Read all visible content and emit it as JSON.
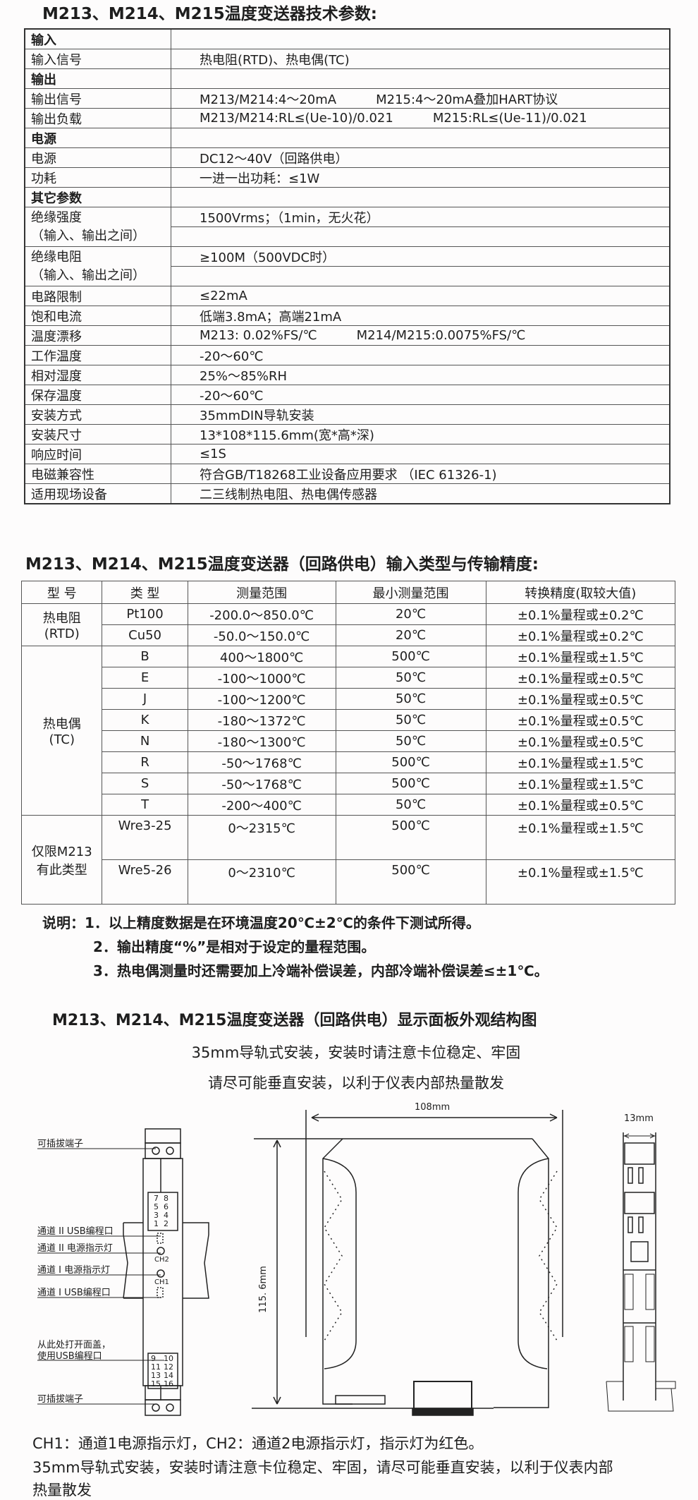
{
  "spec": {
    "title": "M213、M214、M215温度变送器技术参数:",
    "rows": [
      {
        "k": "输入",
        "v": "",
        "section": true
      },
      {
        "k": "输入信号",
        "v": "热电阻(RTD)、热电偶(TC)"
      },
      {
        "k": "输出",
        "v": "",
        "section": true
      },
      {
        "k": "输出信号",
        "v": "M213/M214:4～20mA",
        "v2": "M215:4～20mA叠加HART协议"
      },
      {
        "k": "输出负载",
        "v": "M213/M214:RL≤(Ue-10)/0.021",
        "v2": "M215:RL≤(Ue-11)/0.021"
      },
      {
        "k": "电源",
        "v": "",
        "section": true
      },
      {
        "k": "电源",
        "v": "DC12～40V（回路供电）"
      },
      {
        "k": "功耗",
        "v": "一进一出功耗：≤1W"
      },
      {
        "k": "其它参数",
        "v": "",
        "section": true
      },
      {
        "k": "绝缘强度",
        "k2": "（输入、输出之间）",
        "v": "1500Vrms；（1min，无火花）"
      },
      {
        "k": "绝缘电阻",
        "k2": "（输入、输出之间）",
        "v": "≥100M（500VDC时）"
      },
      {
        "k": "电路限制",
        "v": "≤22mA"
      },
      {
        "k": "饱和电流",
        "v": "低端3.8mA；高端21mA"
      },
      {
        "k": "温度漂移",
        "v": "M213: 0.02%FS/℃",
        "v2": "M214/M215:0.0075%FS/℃"
      },
      {
        "k": "工作温度",
        "v": "-20～60℃"
      },
      {
        "k": "相对湿度",
        "v": "25%～85%RH"
      },
      {
        "k": "保存温度",
        "v": "-20～60℃"
      },
      {
        "k": "安装方式",
        "v": "35mmDIN导轨安装"
      },
      {
        "k": "安装尺寸",
        "v": "13*108*115.6mm(宽*高*深)"
      },
      {
        "k": "响应时间",
        "v": "≤1S"
      },
      {
        "k": "电磁兼容性",
        "v": "符合GB/T18268工业设备应用要求 （IEC 61326-1)"
      },
      {
        "k": "适用现场设备",
        "v": "二三线制热电阻、热电偶传感器"
      }
    ]
  },
  "accuracy": {
    "title": "M213、M214、M215温度变送器（回路供电）输入类型与传输精度:",
    "headers": [
      "型 号",
      "类 型",
      "测量范围",
      "最小测量范围",
      "转换精度(取较大值)"
    ],
    "groups": [
      {
        "name": [
          "热电阻",
          "(RTD)"
        ],
        "rows": [
          [
            "Pt100",
            "-200.0～850.0℃",
            "20℃",
            "±0.1%量程或±0.2℃"
          ],
          [
            "Cu50",
            "-50.0～150.0℃",
            "20℃",
            "±0.1%量程或±0.2℃"
          ]
        ]
      },
      {
        "name": [
          "热电偶",
          "(TC)"
        ],
        "rows": [
          [
            "B",
            "400～1800℃",
            "500℃",
            "±0.1%量程或±1.5℃"
          ],
          [
            "E",
            "-100～1000℃",
            "50℃",
            "±0.1%量程或±0.5℃"
          ],
          [
            "J",
            "-100～1200℃",
            "50℃",
            "±0.1%量程或±0.5℃"
          ],
          [
            "K",
            "-180～1372℃",
            "50℃",
            "±0.1%量程或±0.5℃"
          ],
          [
            "N",
            "-180～1300℃",
            "50℃",
            "±0.1%量程或±0.5℃"
          ],
          [
            "R",
            "-50～1768℃",
            "500℃",
            "±0.1%量程或±1.5℃"
          ],
          [
            "S",
            "-50～1768℃",
            "500℃",
            "±0.1%量程或±1.5℃"
          ],
          [
            "T",
            "-200～400℃",
            "50℃",
            "±0.1%量程或±0.5℃"
          ]
        ]
      },
      {
        "name": [
          "仅限M213",
          "有此类型"
        ],
        "tall": true,
        "rows": [
          [
            "Wre3-25",
            "0～2315℃",
            "500℃",
            "±0.1%量程或±1.5℃"
          ],
          [
            "Wre5-26",
            "0～2310℃",
            "500℃",
            "±0.1%量程或±1.5℃"
          ]
        ]
      }
    ]
  },
  "notes": {
    "n1": "说明：1．以上精度数据是在环境温度20℃±2℃的条件下测试所得。",
    "n2": "2．输出精度“%”是相对于设定的量程范围。",
    "n3": "3．热电偶测量时还需要加上冷端补偿误差，内部冷端补偿误差≤±1℃。"
  },
  "panel": {
    "title": "M213、M214、M215温度变送器（回路供电）显示面板外观结构图",
    "sub1": "35mm导轨式安装，安装时请注意卡位稳定、牢固",
    "sub2": "请尽可能垂直安装，以利于仪表内部热量散发",
    "labels": {
      "plug_top": "可插拔端子",
      "usb2": "通道 II USB编程口",
      "led2": "通道 II 电源指示灯",
      "led1": "通道 I 电源指示灯",
      "usb1": "通道 I USB编程口",
      "open1": "从此处打开面盖，",
      "open2": "使用USB编程口",
      "plug_bottom": "可插拔端子",
      "ch2": "CH2",
      "ch1": "CH1",
      "width": "108mm",
      "height": "115. 6mm",
      "depth": "13mm",
      "pins_top": [
        "7",
        "8",
        "5",
        "6",
        "3",
        "4",
        "1",
        "2"
      ],
      "pins_bottom": [
        "9",
        "10",
        "11",
        "12",
        "13",
        "14",
        "15",
        "16"
      ]
    },
    "bottom1": "CH1：通道1电源指示灯，CH2：通道2电源指示灯，指示灯为红色。",
    "bottom2": "35mm导轨式安装，安装时请注意卡位稳定、牢固，请尽可能垂直安装，以利于仪表内部",
    "bottom3": "热量散发"
  }
}
